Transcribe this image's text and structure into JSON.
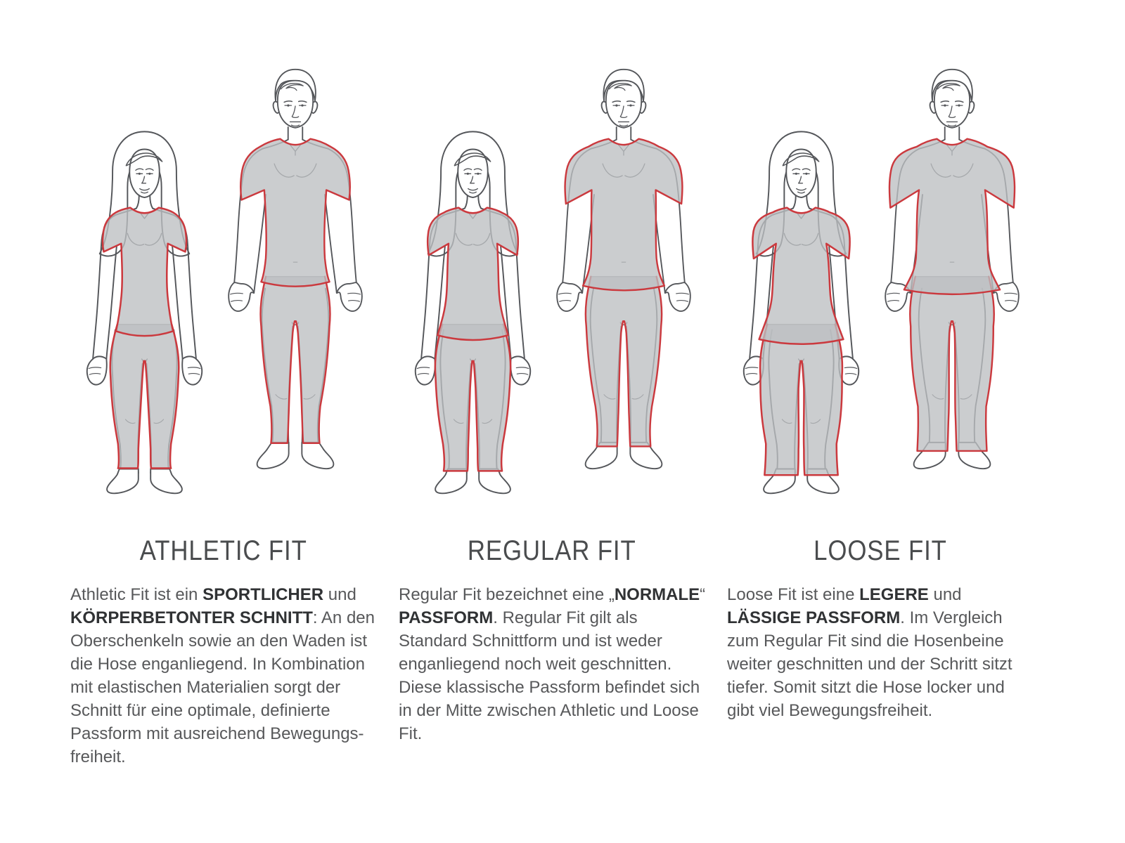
{
  "page": {
    "background": "#ffffff",
    "language": "de"
  },
  "colors": {
    "accent_red": "#cb393e",
    "garment_fill": "rgba(188,191,194,0.78)",
    "garment_edge": "#96989b",
    "body_line": "#54565a",
    "heading_text": "#4a4c4e",
    "body_text": "#57585a",
    "bold_text": "#303234"
  },
  "columns": [
    {
      "id": "athletic",
      "heading": "ATHLETIC FIT",
      "figures": [
        "woman",
        "man"
      ],
      "description": [
        {
          "t": "Athletic Fit ist ein "
        },
        {
          "t": "SPORTLICHER",
          "b": true
        },
        {
          "t": " und "
        },
        {
          "t": "KÖRPERBETONTER SCHNITT",
          "b": true
        },
        {
          "t": ": An den Oberschenkeln sowie an den Waden ist die Hose enganliegend. In Kombination mit elastischen Materialien sorgt der Schnitt für eine optimale, definierte Passform mit ausreichend Bewegungs­freiheit."
        }
      ]
    },
    {
      "id": "regular",
      "heading": "REGULAR FIT",
      "figures": [
        "woman",
        "man"
      ],
      "description": [
        {
          "t": "Regular Fit bezeichnet eine „"
        },
        {
          "t": "NORMA­LE",
          "b": true
        },
        {
          "t": "“ "
        },
        {
          "t": "PASSFORM",
          "b": true
        },
        {
          "t": ". Regular Fit gilt als Standard Schnittform und ist weder enganliegend noch weit geschnitten. Diese klassische Passform befindet sich in der Mitte zwischen Athletic und Loose Fit."
        }
      ]
    },
    {
      "id": "loose",
      "heading": "LOOSE FIT",
      "figures": [
        "woman",
        "man"
      ],
      "description": [
        {
          "t": "Loose Fit ist eine "
        },
        {
          "t": "LEGERE",
          "b": true
        },
        {
          "t": " und "
        },
        {
          "t": "LÄSSIGE PASSFORM",
          "b": true
        },
        {
          "t": ". Im Vergleich zum Regular Fit sind die Hosenbeine weiter geschnitten und der Schritt sitzt tiefer. Somit sitzt die Hose locker und gibt viel Bewegungsfreiheit."
        }
      ]
    }
  ]
}
